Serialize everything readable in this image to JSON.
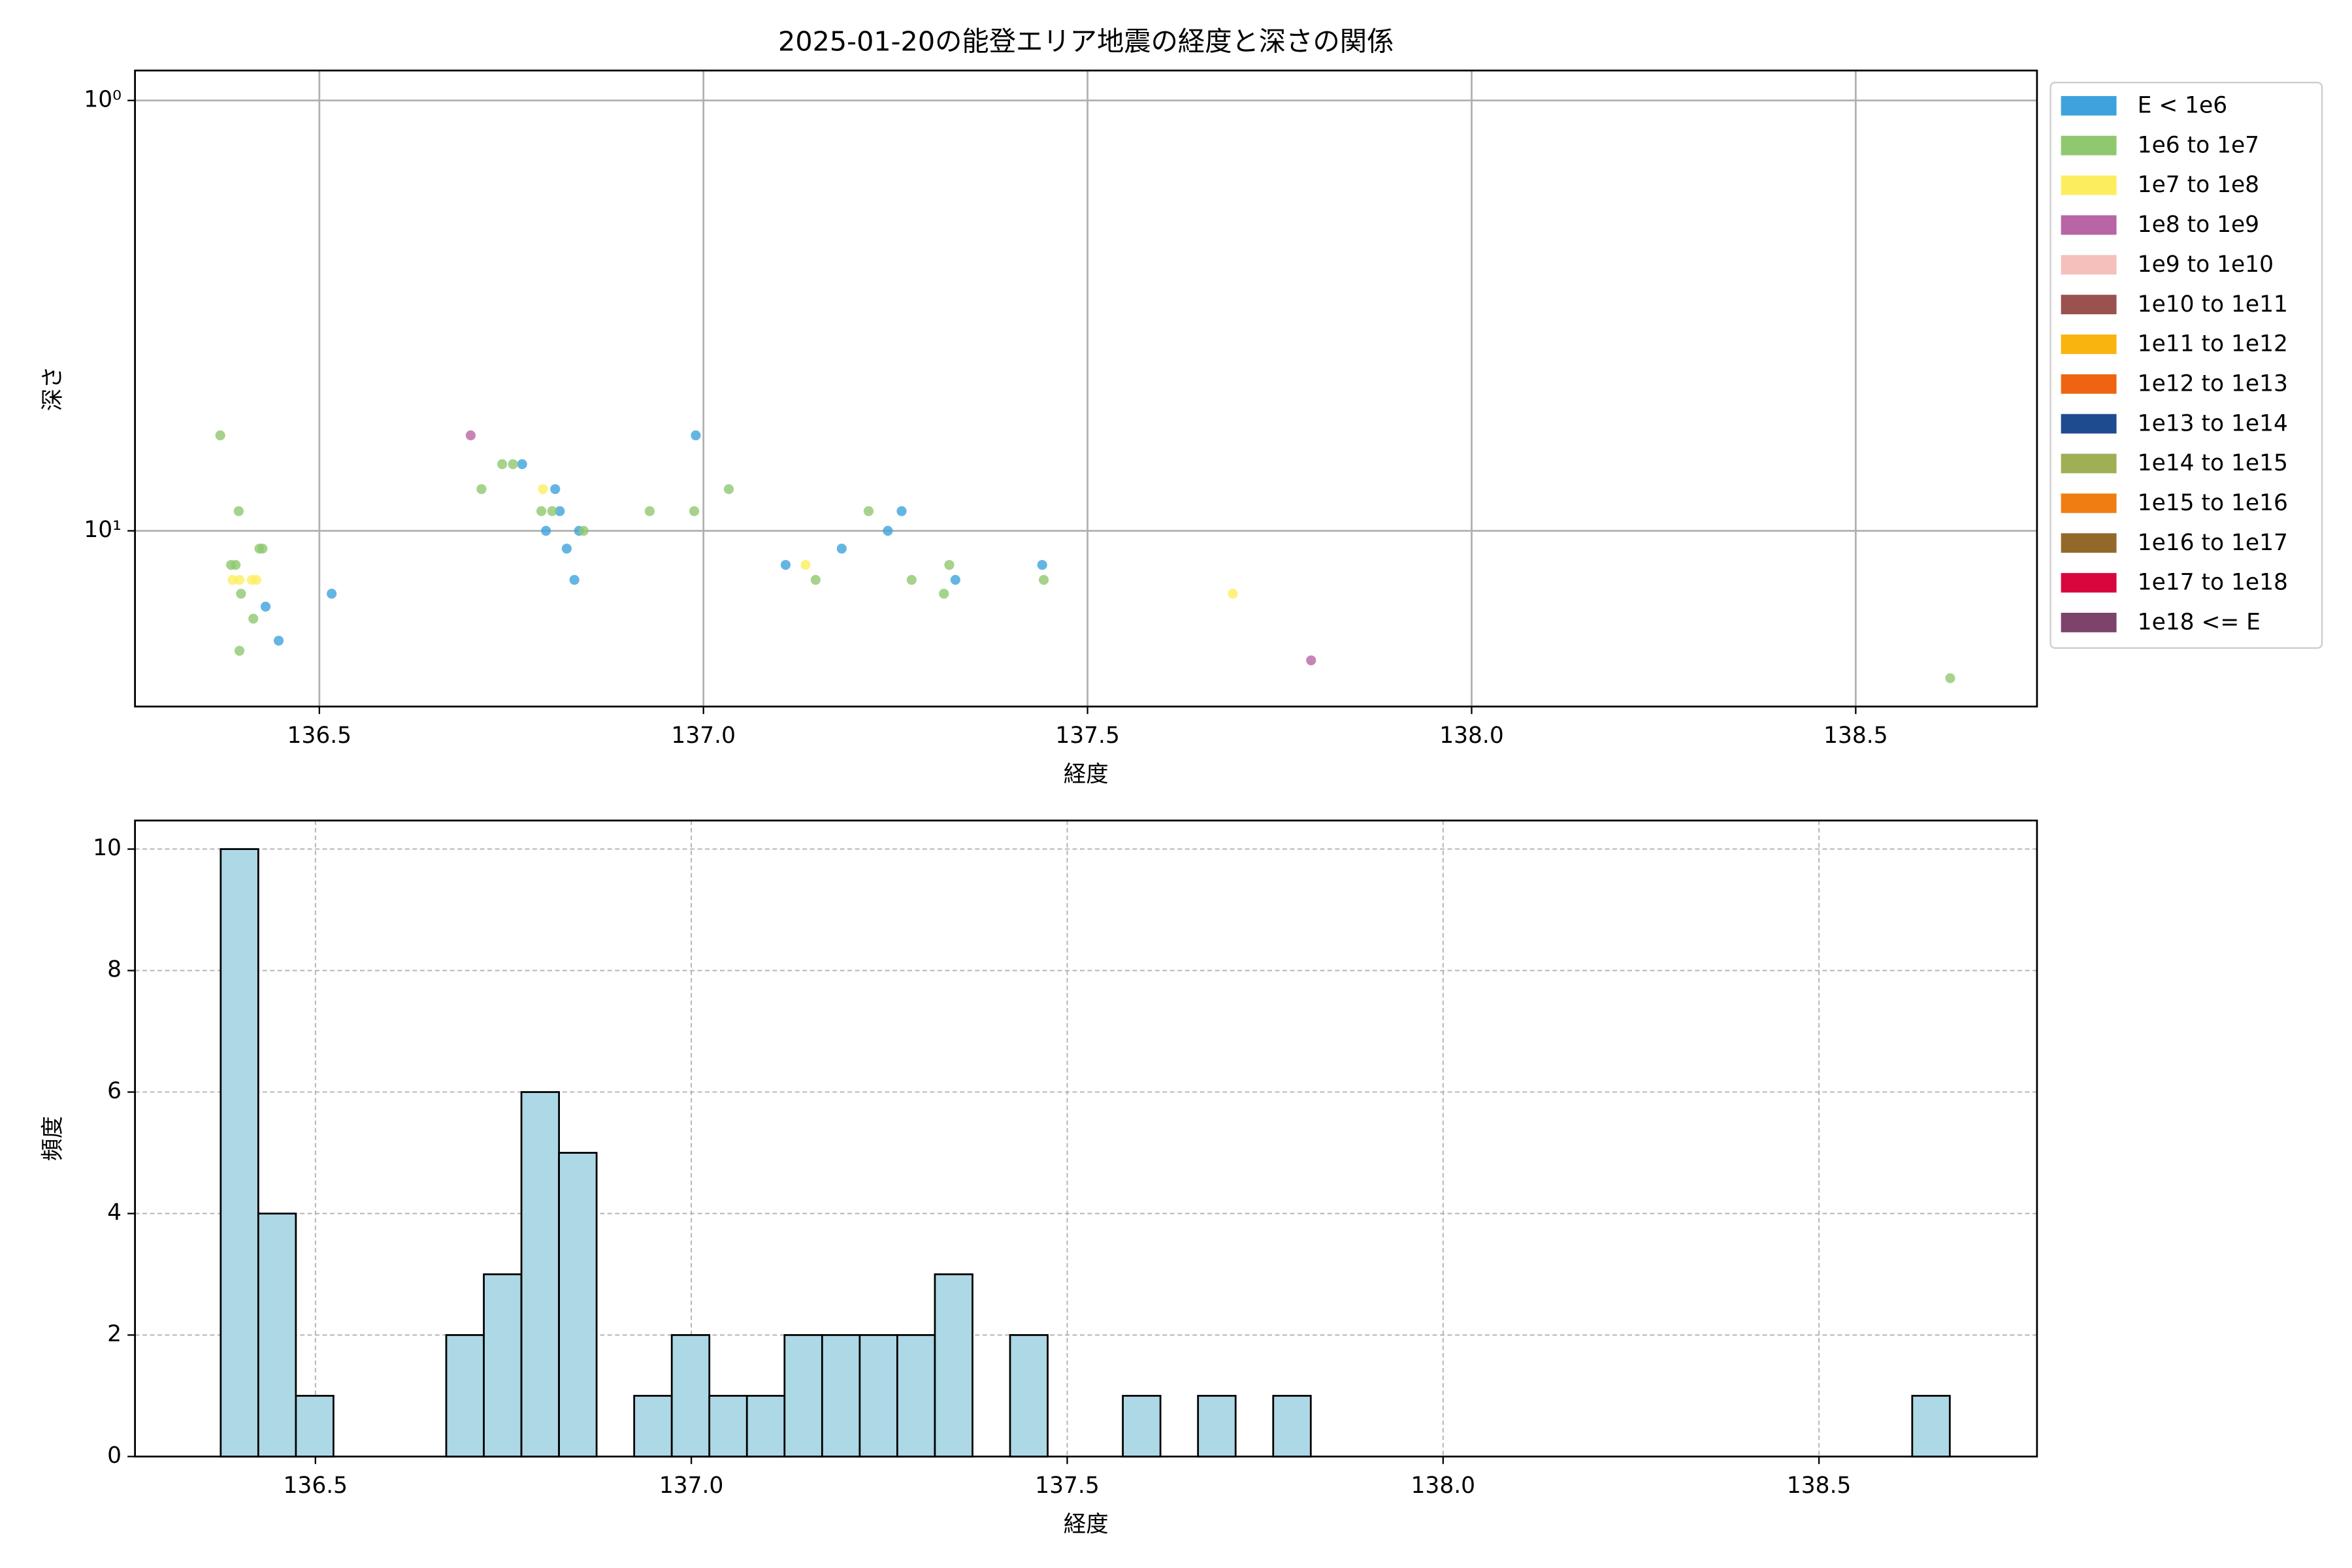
{
  "chart_data": [
    {
      "type": "scatter",
      "title": "2025-01-20の能登エリア地震の経度と深さの関係",
      "x_label": "経度",
      "y_label": "深さ",
      "xlim": [
        136.26,
        138.736
      ],
      "xticks": [
        136.5,
        {
          "value": 137.0,
          "label": "137.0"
        },
        137.5,
        {
          "value": 138.0,
          "label": "138.0"
        },
        138.5
      ],
      "ylim": [
        0.852,
        25.6
      ],
      "y_log": true,
      "y_inverted": true,
      "yticks": [
        {
          "value": 1,
          "label": "10⁰"
        },
        {
          "value": 10,
          "label": "10¹"
        }
      ],
      "grid": true,
      "legend": "outside right",
      "series": [
        {
          "name": "E < 1e6",
          "color": "#3fa2dd",
          "x": [
            136.43,
            136.447,
            136.516,
            136.764,
            136.807,
            136.795,
            136.813,
            136.822,
            136.832,
            136.838,
            136.99,
            137.107,
            137.18,
            137.24,
            137.258,
            137.328,
            137.441
          ],
          "y": [
            15,
            18,
            14,
            7,
            8,
            10,
            9,
            11,
            13,
            10,
            6,
            12,
            11,
            10,
            9,
            13,
            12
          ]
        },
        {
          "name": "1e6 to 1e7",
          "color": "#8fc86f",
          "x": [
            136.371,
            136.395,
            136.385,
            136.391,
            136.422,
            136.426,
            136.398,
            136.414,
            136.396,
            136.711,
            136.738,
            136.752,
            136.789,
            136.803,
            136.844,
            136.93,
            136.988,
            137.033,
            137.146,
            137.215,
            137.271,
            137.32,
            137.313,
            137.443,
            138.623
          ],
          "y": [
            6,
            9,
            12,
            12,
            11,
            11,
            14,
            16,
            19,
            8,
            7,
            7,
            9,
            9,
            10,
            9,
            9,
            8,
            13,
            9,
            13,
            12,
            14,
            13,
            22
          ]
        },
        {
          "name": "1e7 to 1e8",
          "color": "#fced5f",
          "x": [
            136.387,
            136.396,
            136.412,
            136.418,
            136.791,
            137.133,
            137.689
          ],
          "y": [
            13,
            13,
            13,
            13,
            8,
            12,
            14
          ]
        },
        {
          "name": "1e8 to 1e9",
          "color": "#b865a5",
          "x": [
            136.697,
            137.791
          ],
          "y": [
            6,
            20
          ]
        },
        {
          "name": "1e9 to 1e10",
          "color": "#f5c0bb",
          "x": [],
          "y": []
        },
        {
          "name": "1e10 to 1e11",
          "color": "#99524f",
          "x": [],
          "y": []
        },
        {
          "name": "1e11 to 1e12",
          "color": "#f9b40e",
          "x": [],
          "y": []
        },
        {
          "name": "1e12 to 1e13",
          "color": "#ef6412",
          "x": [],
          "y": []
        },
        {
          "name": "1e13 to 1e14",
          "color": "#1e4a90",
          "x": [],
          "y": []
        },
        {
          "name": "1e14 to 1e15",
          "color": "#9faf54",
          "x": [],
          "y": []
        },
        {
          "name": "1e15 to 1e16",
          "color": "#ef7d12",
          "x": [],
          "y": []
        },
        {
          "name": "1e16 to 1e17",
          "color": "#93692b",
          "x": [],
          "y": []
        },
        {
          "name": "1e17 to 1e18",
          "color": "#d9063d",
          "x": [],
          "y": []
        },
        {
          "name": "1e18 <= E",
          "color": "#7c436b",
          "x": [],
          "y": []
        }
      ]
    },
    {
      "type": "histogram",
      "x_label": "経度",
      "y_label": "頻度",
      "color": "#add8e6",
      "xlim": [
        136.26,
        138.79
      ],
      "xticks": [
        136.5,
        {
          "value": 137.0,
          "label": "137.0"
        },
        137.5,
        {
          "value": 138.0,
          "label": "138.0"
        },
        138.5
      ],
      "ylim": [
        0,
        10.47
      ],
      "yticks": [
        0,
        2,
        4,
        6,
        8,
        10
      ],
      "grid": true,
      "bins": [
        136.374,
        136.424,
        136.474,
        136.524,
        136.574,
        136.624,
        136.674,
        136.724,
        136.774,
        136.824,
        136.874,
        136.924,
        136.974,
        137.024,
        137.074,
        137.124,
        137.174,
        137.224,
        137.274,
        137.324,
        137.374,
        137.424,
        137.474,
        137.524,
        137.574,
        137.624,
        137.674,
        137.724,
        137.774,
        137.824,
        137.874,
        137.924,
        137.974,
        138.024,
        138.074,
        138.124,
        138.174,
        138.224,
        138.274,
        138.324,
        138.374,
        138.424,
        138.474,
        138.524,
        138.574,
        138.624,
        138.674
      ],
      "counts": [
        10,
        4,
        1,
        0,
        0,
        0,
        2,
        3,
        6,
        5,
        0,
        1,
        2,
        1,
        1,
        2,
        2,
        2,
        2,
        3,
        0,
        2,
        0,
        0,
        1,
        0,
        1,
        0,
        1,
        0,
        0,
        0,
        0,
        0,
        0,
        0,
        0,
        0,
        0,
        0,
        0,
        0,
        0,
        0,
        0,
        1
      ]
    }
  ]
}
